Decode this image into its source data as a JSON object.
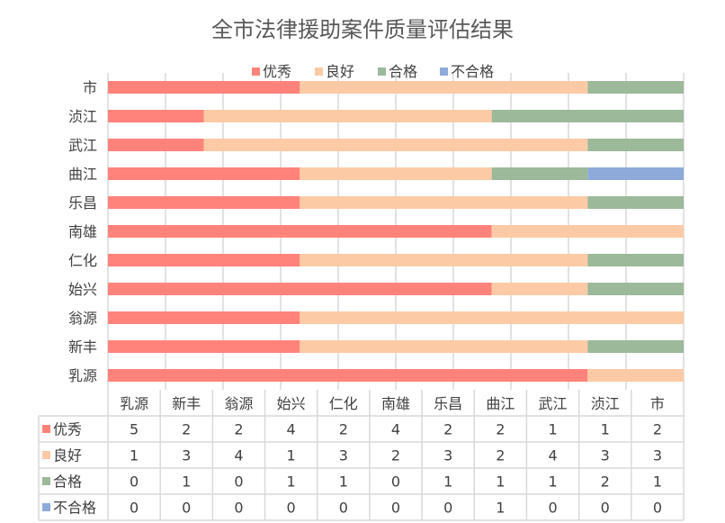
{
  "chart_data": {
    "type": "bar",
    "orientation": "horizontal",
    "stacked": "percent",
    "title": "全市法律援助案件质量评估结果",
    "categories": [
      "乳源",
      "新丰",
      "翁源",
      "始兴",
      "仁化",
      "南雄",
      "乐昌",
      "曲江",
      "武江",
      "浈江",
      "市"
    ],
    "series": [
      {
        "name": "优秀",
        "color": "#ff837b",
        "values": [
          5,
          2,
          2,
          4,
          2,
          4,
          2,
          2,
          1,
          1,
          2
        ]
      },
      {
        "name": "良好",
        "color": "#fdcaa6",
        "values": [
          1,
          3,
          4,
          1,
          3,
          2,
          3,
          2,
          4,
          3,
          3
        ]
      },
      {
        "name": "合格",
        "color": "#9cb99a",
        "values": [
          0,
          1,
          0,
          1,
          1,
          0,
          1,
          1,
          1,
          2,
          1
        ]
      },
      {
        "name": "不合格",
        "color": "#8eaadb",
        "values": [
          0,
          0,
          0,
          0,
          0,
          0,
          0,
          1,
          0,
          0,
          0
        ]
      }
    ],
    "xlim": [
      0,
      1
    ],
    "grid": true,
    "legend_position": "top",
    "data_table": true
  }
}
